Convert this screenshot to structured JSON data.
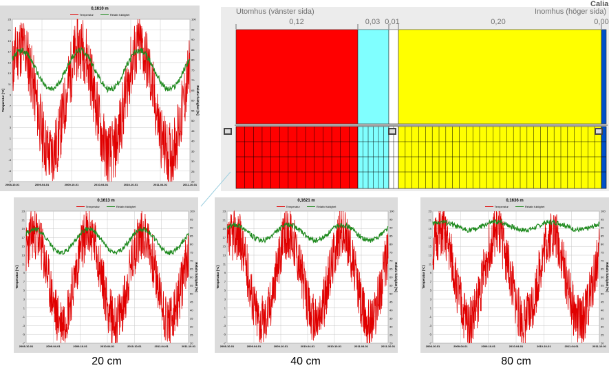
{
  "plots": [
    {
      "id": "top-left",
      "title": "0,1610 m",
      "x_ticks": [
        "2008-10-01",
        "2009-04-01",
        "2009-10-01",
        "2010-04-01",
        "2010-10-01",
        "2011-04-01",
        "2011-10-01"
      ],
      "y_left_ticks": [
        "23",
        "21",
        "19",
        "17",
        "15",
        "13",
        "11",
        "9",
        "7",
        "5",
        "3",
        "1",
        "-1",
        "-3",
        "-5",
        "-7"
      ],
      "y_right_ticks": [
        "100",
        "95",
        "90",
        "85",
        "80",
        "75",
        "70",
        "65",
        "60",
        "55",
        "50",
        "45",
        "40",
        "35",
        "30",
        "25",
        "20"
      ],
      "humidity_base": 75,
      "humidity_amp": 12
    },
    {
      "id": "bottom-20cm",
      "title": "0,1613 m",
      "x_ticks": [
        "2008-10-01",
        "2009-04-01",
        "2009-10-01",
        "2010-04-01",
        "2010-10-01",
        "2011-04-01",
        "2011-10-01"
      ],
      "y_left_ticks": [
        "23",
        "21",
        "19",
        "17",
        "15",
        "13",
        "11",
        "9",
        "7",
        "5",
        "3",
        "1",
        "-1",
        "-3",
        "-5",
        "-7"
      ],
      "y_right_ticks": [
        "100",
        "95",
        "90",
        "85",
        "80",
        "75",
        "70",
        "65",
        "60",
        "55",
        "50",
        "45",
        "40",
        "35",
        "30",
        "25",
        "20"
      ],
      "humidity_base": 82,
      "humidity_amp": 9
    },
    {
      "id": "bottom-40cm",
      "title": "0,1621 m",
      "x_ticks": [
        "2008-10-01",
        "2009-04-01",
        "2009-10-01",
        "2010-04-01",
        "2010-10-01",
        "2011-04-01",
        "2011-10-01"
      ],
      "y_left_ticks": [
        "23",
        "21",
        "19",
        "17",
        "15",
        "13",
        "11",
        "9",
        "7",
        "5",
        "3",
        "1",
        "-1",
        "-3",
        "-5",
        "-7"
      ],
      "y_right_ticks": [
        "100",
        "95",
        "90",
        "85",
        "80",
        "75",
        "70",
        "65",
        "60",
        "55",
        "50",
        "45",
        "40",
        "35",
        "30",
        "25",
        "20"
      ],
      "humidity_base": 87,
      "humidity_amp": 6
    },
    {
      "id": "bottom-80cm",
      "title": "0,1636 m",
      "x_ticks": [
        "2008-10-01",
        "2009-04-01",
        "2009-10-01",
        "2010-04-01",
        "2010-10-01",
        "2011-04-01",
        "2011-10-01"
      ],
      "y_left_ticks": [
        "23",
        "21",
        "19",
        "17",
        "15",
        "13",
        "11",
        "9",
        "7",
        "5",
        "3",
        "1",
        "-1",
        "-3",
        "-5",
        "-7"
      ],
      "y_right_ticks": [
        "100",
        "95",
        "90",
        "85",
        "80",
        "75",
        "70",
        "65",
        "60",
        "55",
        "50",
        "45",
        "40",
        "35",
        "30",
        "25",
        "20"
      ],
      "humidity_base": 91,
      "humidity_amp": 3
    }
  ],
  "legend": {
    "temperature": "Temperatur",
    "humidity": "Relativ fuktighet"
  },
  "axis_labels": {
    "left": "Temperatur [°C]",
    "right": "Relativ fuktighet [%]"
  },
  "captions": {
    "c20": "20 cm",
    "c40": "40 cm",
    "c80": "80 cm"
  },
  "wall": {
    "outside_label": "Utomhus (vänster sida)",
    "inside_label": "Inomhus (höger sida)",
    "layers": [
      {
        "thickness": "0,12",
        "color": "#ff0000"
      },
      {
        "thickness": "0,03",
        "color": "#80ffff"
      },
      {
        "thickness": "0,01",
        "color": "#ffffff"
      },
      {
        "thickness": "0,20",
        "color": "#ffff00"
      },
      {
        "thickness": "0,00",
        "color": "#0050c8"
      }
    ]
  },
  "corner_text": "Calias",
  "colors": {
    "temperature": "#e00000",
    "humidity": "#1e8a1e",
    "panel_bg": "#dcdcdc",
    "plot_bg": "#ffffff"
  }
}
